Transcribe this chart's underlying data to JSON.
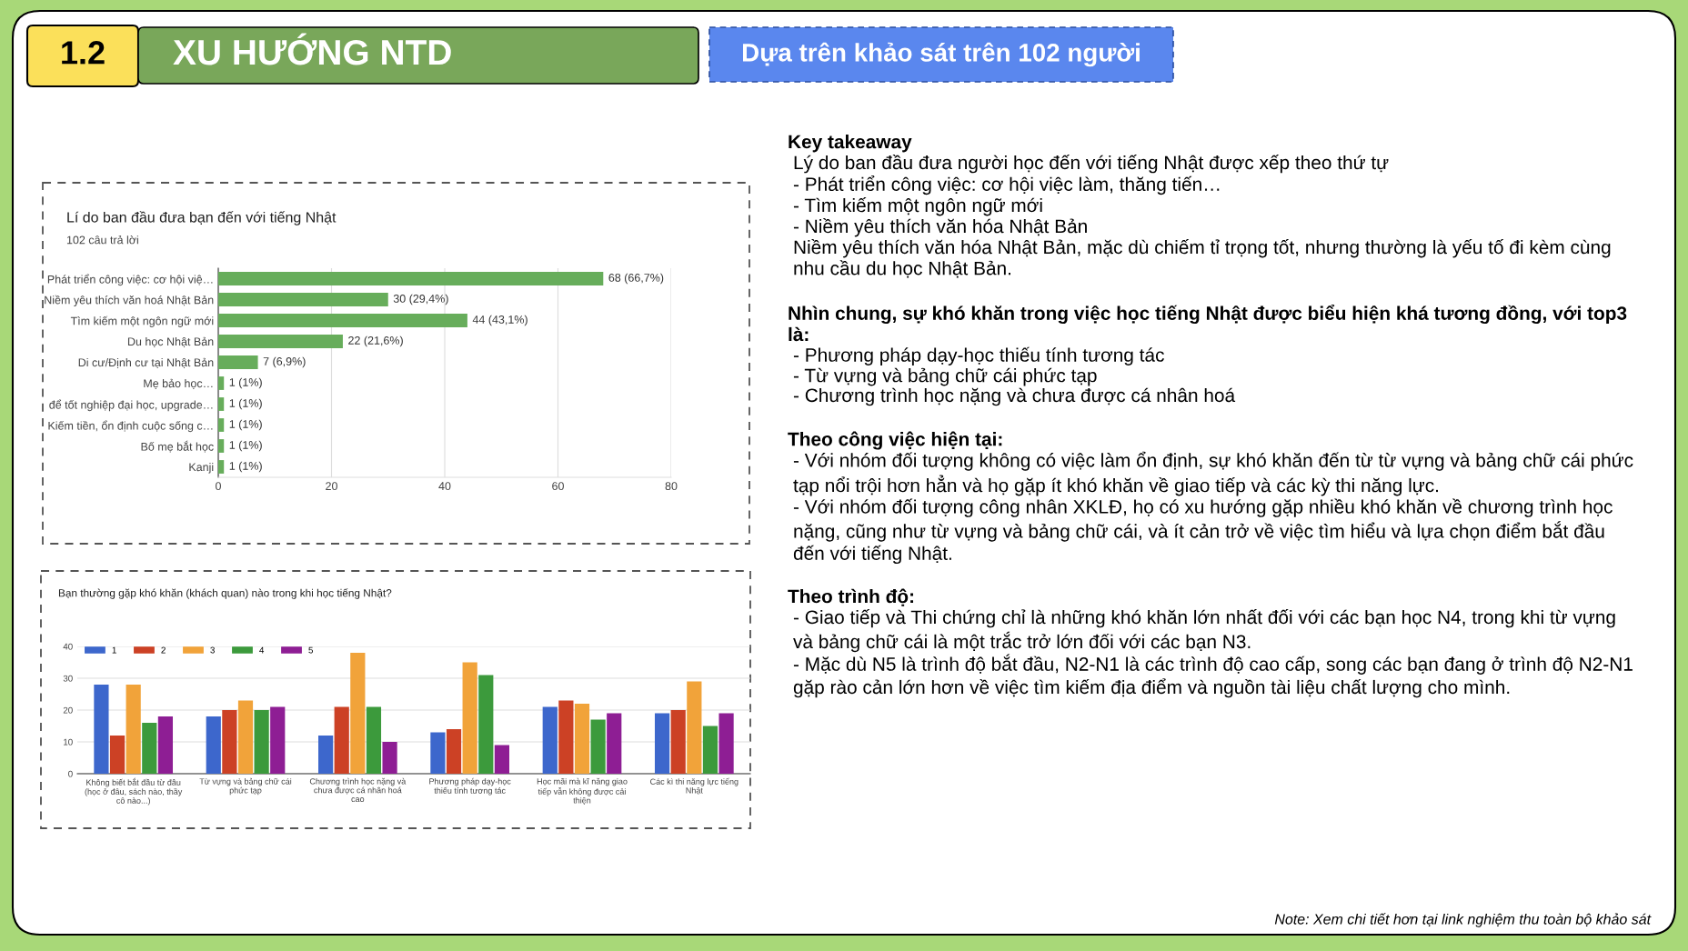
{
  "chart_data": [
    {
      "type": "other",
      "title": "XU HƯỚNG NTD",
      "subtitle": "Dựa trên khảo sát trên 102 người",
      "annotations": [
        "1.2",
        "Note: Xem chi tiết hơn tại link nghiệm thu toàn bộ khảo sát"
      ]
    },
    {
      "type": "bar",
      "orientation": "horizontal",
      "title": "Lí do ban đầu đưa bạn đến với tiếng Nhật",
      "subtitle": "102 câu trả lời",
      "categories": [
        "Phát triển công việc: cơ hội việ…",
        "Niềm yêu thích văn hoá Nhật Bản",
        "Tìm kiếm một ngôn ngữ mới",
        "Du học Nhật Bản",
        "Di cư/Định cư tại Nhật Bản",
        "Mẹ bảo học…",
        "để tốt nghiệp đại học, upgrade…",
        "Kiếm tiền, ổn định cuộc sống c…",
        "Bố mẹ bắt học",
        "Kanji"
      ],
      "values": [
        68,
        30,
        44,
        22,
        7,
        1,
        1,
        1,
        1,
        1
      ],
      "value_labels": [
        "68 (66,7%)",
        "30 (29,4%)",
        "44 (43,1%)",
        "22 (21,6%)",
        "7 (6,9%)",
        "1 (1%)",
        "1 (1%)",
        "1 (1%)",
        "1 (1%)",
        "1 (1%)"
      ],
      "color": "#67ad5b",
      "xlim": [
        0,
        80
      ],
      "xticks": [
        0,
        20,
        40,
        60,
        80
      ],
      "grid": "x"
    },
    {
      "type": "bar",
      "title": "Bạn thường gặp khó khăn (khách quan) nào trong khi học tiếng Nhật?",
      "categories": [
        "Không biết bắt đầu từ đâu\n(học ở đâu, sách nào, thầy\ncô nào...)",
        "Từ vựng và bảng chữ cái\nphức tạp",
        "Chương trình học nặng và\nchưa được cá nhân hoá\ncao",
        "Phương pháp dạy-học\nthiếu tính tương tác",
        "Học mãi mà kĩ năng giao\ntiếp vẫn không được cải\nthiện",
        "Các kì thi năng lực tiếng\nNhật"
      ],
      "series": [
        {
          "name": "1",
          "color": "#3d67cc",
          "values": [
            28,
            18,
            12,
            13,
            21,
            19
          ]
        },
        {
          "name": "2",
          "color": "#cc4125",
          "values": [
            12,
            20,
            21,
            14,
            23,
            20
          ]
        },
        {
          "name": "3",
          "color": "#f1a33a",
          "values": [
            28,
            23,
            38,
            35,
            22,
            29
          ]
        },
        {
          "name": "4",
          "color": "#3c9a3c",
          "values": [
            16,
            20,
            21,
            31,
            17,
            15
          ]
        },
        {
          "name": "5",
          "color": "#8e1e94",
          "values": [
            18,
            21,
            10,
            9,
            19,
            19
          ]
        }
      ],
      "ylim": [
        0,
        40
      ],
      "yticks": [
        0,
        10,
        20,
        30,
        40
      ],
      "grid": "y",
      "legend": "top left"
    },
    {
      "type": "other",
      "title": "Key takeaway",
      "annotations": [
        "Lý do ban đầu đưa người học đến với tiếng Nhật được xếp theo thứ tự",
        "- Phát triển công việc: cơ hội việc làm, thăng tiến…",
        "- Tìm kiếm một ngôn ngữ mới",
        "- Niềm yêu thích văn hóa Nhật Bản",
        "Niềm yêu thích văn hóa Nhật Bản, mặc dù chiếm tỉ trọng tốt, nhưng thường là yếu tố đi kèm cùng nhu cầu du học Nhật Bản."
      ]
    },
    {
      "type": "other",
      "title": "Nhìn chung, sự khó khăn trong việc học tiếng Nhật được biểu hiện khá tương đồng, với top3 là:",
      "annotations": [
        "- Phương pháp dạy-học thiếu tính tương tác",
        "- Từ vựng và bảng chữ cái phức tạp",
        "- Chương trình học nặng và chưa được cá nhân hoá"
      ]
    },
    {
      "type": "other",
      "title": "Theo công việc hiện tại:",
      "annotations": [
        "- Với nhóm đối tượng không có việc làm ổn định, sự khó khăn đến từ từ vựng và bảng chữ cái phức tạp nổi trội hơn hẳn và họ gặp ít khó khăn về giao tiếp và các kỳ thi năng lực.",
        "- Với nhóm đối tượng công nhân XKLĐ, họ có xu hướng gặp nhiều khó khăn về chương trình học nặng, cũng như từ vựng và bảng chữ cái, và ít cản trở về việc tìm hiểu và lựa chọn điểm bắt đầu đến với tiếng Nhật."
      ]
    },
    {
      "type": "other",
      "title": "Theo trình độ:",
      "annotations": [
        "- Giao tiếp và Thi chứng chỉ là những khó khăn lớn nhất đối với các bạn học N4, trong khi từ vựng và bảng chữ cái là một trắc trở lớn đối với các bạn N3.",
        "- Mặc dù N5 là trình độ bắt đầu, N2-N1 là các trình độ cao cấp, song các bạn đang ở trình độ N2-N1 gặp rào cản lớn hơn về việc tìm kiếm địa điểm và nguồn tài liệu chất lượng cho mình."
      ]
    }
  ]
}
